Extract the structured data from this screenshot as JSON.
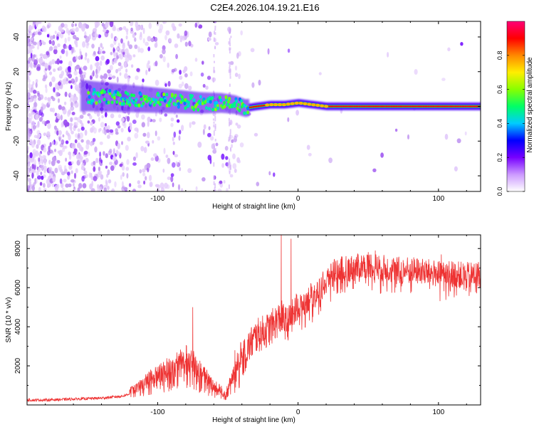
{
  "page_title": "C2E4.2026.104.19.21.E16",
  "colors": {
    "snr_line": "#ee3333",
    "frame": "#000000",
    "spectrogram_ridge": "#ff0000",
    "colorbar_stops": [
      "#ffffff",
      "#cc99ff",
      "#7700ff",
      "#0000ff",
      "#00ccff",
      "#00ff66",
      "#88ff00",
      "#ffee00",
      "#ff8800",
      "#ff0000",
      "#ff0077"
    ]
  },
  "chart_data": [
    {
      "type": "heatmap",
      "title": "C2E4.2026.104.19.21.E16",
      "xlabel": "Height of straight line (km)",
      "ylabel": "Frequency (Hz)",
      "xlim": [
        -193,
        130
      ],
      "ylim": [
        -49,
        49
      ],
      "xticks": [
        -100,
        0,
        100
      ],
      "xtick_labels": [
        "-100",
        "0",
        "100"
      ],
      "yticks": [
        -40,
        -20,
        0,
        20,
        40
      ],
      "ytick_labels": [
        "-40",
        "-20",
        "0",
        "20",
        "40"
      ],
      "ridge": {
        "x": [
          -150,
          -130,
          -110,
          -90,
          -70,
          -55,
          -45,
          -38,
          -30,
          -20,
          -10,
          0,
          10,
          20,
          40,
          60,
          80,
          100,
          130
        ],
        "frequency": [
          6,
          5,
          4,
          3,
          2,
          2,
          1,
          -1,
          0,
          1,
          1,
          2,
          1,
          0,
          0,
          0,
          0,
          0,
          0
        ]
      },
      "colorbar": {
        "label": "Normalized spectral amplitude",
        "range": [
          0,
          1
        ],
        "ticks": [
          0.0,
          0.2,
          0.4,
          0.6,
          0.8
        ],
        "tick_labels": [
          "0.0",
          "0.2",
          "0.4",
          "0.6",
          "0.8"
        ]
      }
    },
    {
      "type": "line",
      "xlabel": "Height of straight line (km)",
      "ylabel": "SNR (10 * v/v)",
      "xlim": [
        -193,
        130
      ],
      "ylim": [
        0,
        8700
      ],
      "xticks": [
        -100,
        0,
        100
      ],
      "xtick_labels": [
        "-100",
        "0",
        "100"
      ],
      "yticks": [
        2000,
        4000,
        6000,
        8000
      ],
      "ytick_labels": [
        "2000",
        "4000",
        "6000",
        "8000"
      ],
      "series": [
        {
          "name": "SNR",
          "x": [
            -193,
            -180,
            -160,
            -140,
            -125,
            -115,
            -105,
            -95,
            -85,
            -78,
            -70,
            -60,
            -52,
            -45,
            -40,
            -35,
            -30,
            -25,
            -20,
            -15,
            -12,
            -8,
            -5,
            -2,
            0,
            5,
            10,
            15,
            20,
            25,
            30,
            40,
            50,
            60,
            70,
            80,
            90,
            100,
            110,
            120,
            130
          ],
          "values": [
            250,
            250,
            300,
            350,
            450,
            700,
            1100,
            1400,
            1700,
            1900,
            1400,
            800,
            500,
            1300,
            2200,
            3000,
            3500,
            3700,
            3900,
            4300,
            4500,
            4100,
            4400,
            4800,
            5000,
            5300,
            5600,
            5900,
            6300,
            6900,
            6900,
            7000,
            7200,
            7000,
            6900,
            6900,
            6800,
            6700,
            6700,
            6600,
            6700
          ]
        }
      ]
    }
  ]
}
